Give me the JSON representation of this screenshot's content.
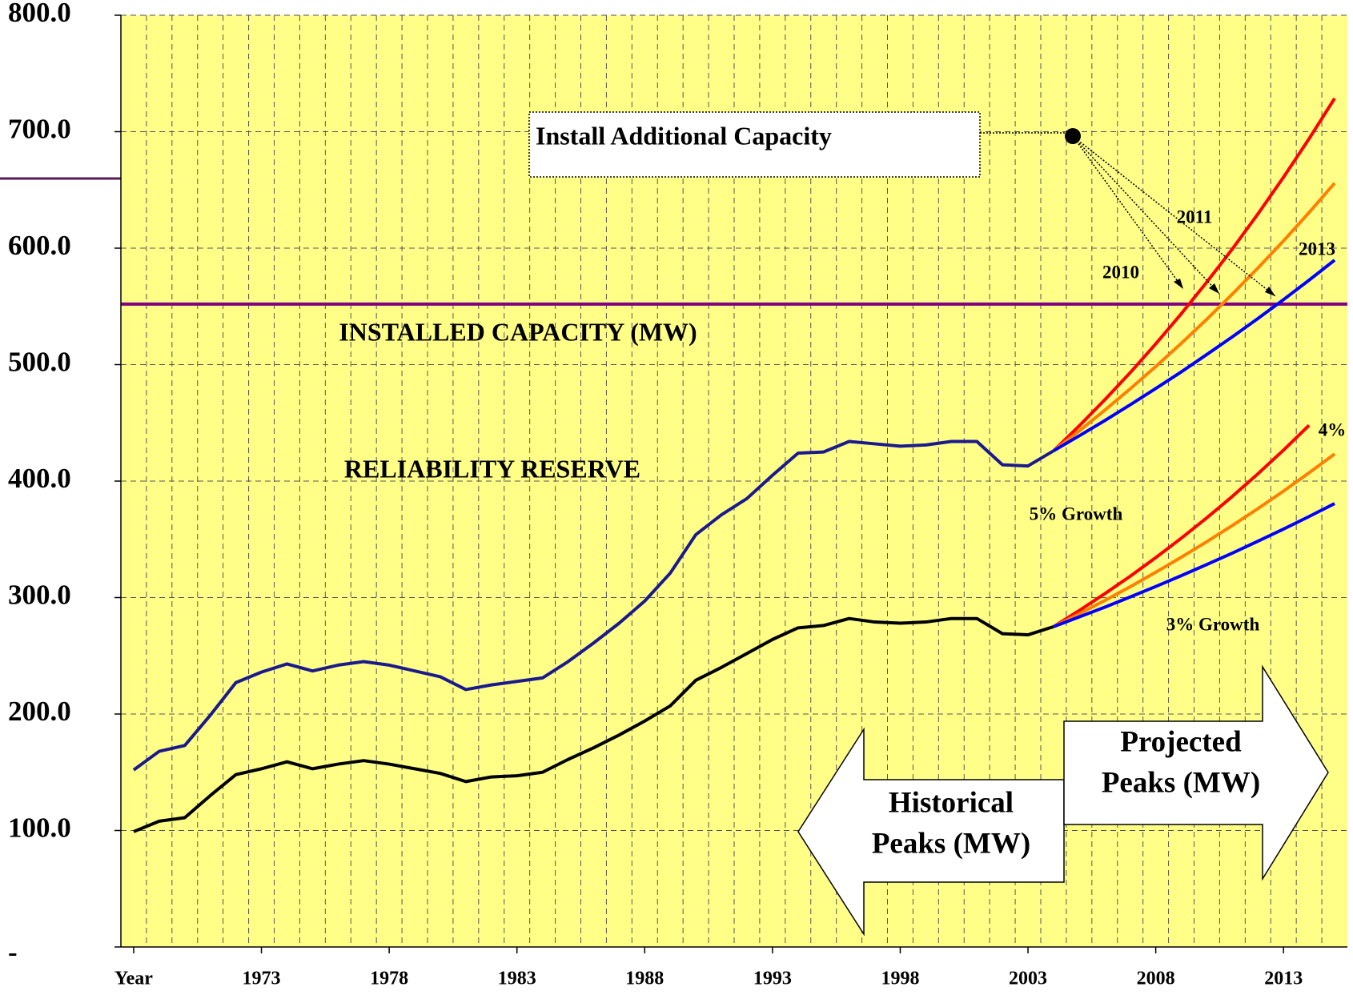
{
  "chart_data": {
    "type": "line",
    "x": [
      1968,
      1969,
      1970,
      1971,
      1972,
      1973,
      1974,
      1975,
      1976,
      1977,
      1978,
      1979,
      1980,
      1981,
      1982,
      1983,
      1984,
      1985,
      1986,
      1987,
      1988,
      1989,
      1990,
      1991,
      1992,
      1993,
      1994,
      1995,
      1996,
      1997,
      1998,
      1999,
      2000,
      2001,
      2002,
      2003,
      2004,
      2005,
      2006,
      2007,
      2008,
      2009,
      2010,
      2011,
      2012,
      2013,
      2014,
      2015
    ],
    "xlim": [
      1967.5,
      2015.5
    ],
    "xticks": [
      {
        "value": 1968,
        "label": "Year"
      },
      1973,
      1978,
      1983,
      1988,
      1993,
      1998,
      2003,
      2008,
      2013
    ],
    "ylim": [
      0,
      800
    ],
    "yticks": [
      {
        "value": 0,
        "label": "-"
      },
      {
        "value": 100,
        "label": "100.0"
      },
      {
        "value": 200,
        "label": "200.0"
      },
      {
        "value": 300,
        "label": "300.0"
      },
      {
        "value": 400,
        "label": "400.0"
      },
      {
        "value": 500,
        "label": "500.0"
      },
      {
        "value": 600,
        "label": "600.0"
      },
      {
        "value": 700,
        "label": "700.0"
      },
      {
        "value": 800,
        "label": "800.0"
      }
    ],
    "grid": true,
    "capacity": {
      "label": "INSTALLED CAPACITY (MW)",
      "value": 552,
      "color": "#800080"
    },
    "series": [
      {
        "name": "RELIABILITY RESERVE",
        "color": "#1a1a8c",
        "values": [
          152,
          168,
          173,
          199,
          227,
          236,
          243,
          237,
          242,
          245,
          242,
          237,
          232,
          221,
          225,
          228,
          231,
          245,
          261,
          278,
          297,
          321,
          354,
          371,
          385,
          405,
          424,
          425,
          434,
          432,
          430,
          431,
          434,
          434,
          414,
          413,
          426,
          null,
          null,
          null,
          null,
          null,
          null,
          null,
          null,
          null,
          null,
          null
        ]
      },
      {
        "color": "#000000",
        "values": [
          99,
          108,
          111,
          130,
          148,
          153,
          159,
          153,
          157,
          160,
          157,
          153,
          149,
          142,
          146,
          147,
          150,
          161,
          171,
          182,
          194,
          207,
          229,
          240,
          252,
          264,
          274,
          276,
          282,
          279,
          278,
          279,
          282,
          282,
          269,
          268,
          275,
          null,
          null,
          null,
          null,
          null,
          null,
          null,
          null,
          null,
          null,
          null
        ]
      },
      {
        "color": "#ff0000",
        "values": [
          null,
          null,
          null,
          null,
          null,
          null,
          null,
          null,
          null,
          null,
          null,
          null,
          null,
          null,
          null,
          null,
          null,
          null,
          null,
          null,
          null,
          null,
          null,
          null,
          null,
          null,
          null,
          null,
          null,
          null,
          null,
          null,
          null,
          null,
          null,
          null,
          426,
          447.3,
          469.7,
          493.1,
          517.8,
          543.7,
          570.9,
          599.4,
          629.4,
          660.9,
          693.9,
          728.6
        ]
      },
      {
        "color": "#ff7f00",
        "values": [
          null,
          null,
          null,
          null,
          null,
          null,
          null,
          null,
          null,
          null,
          null,
          null,
          null,
          null,
          null,
          null,
          null,
          null,
          null,
          null,
          null,
          null,
          null,
          null,
          null,
          null,
          null,
          null,
          null,
          null,
          null,
          null,
          null,
          null,
          null,
          null,
          426,
          443.0,
          460.8,
          479.2,
          498.4,
          518.3,
          539.0,
          560.6,
          583.0,
          606.3,
          630.6,
          655.8
        ]
      },
      {
        "color": "#0000ff",
        "values": [
          null,
          null,
          null,
          null,
          null,
          null,
          null,
          null,
          null,
          null,
          null,
          null,
          null,
          null,
          null,
          null,
          null,
          null,
          null,
          null,
          null,
          null,
          null,
          null,
          null,
          null,
          null,
          null,
          null,
          null,
          null,
          null,
          null,
          null,
          null,
          null,
          426,
          438.8,
          451.9,
          465.5,
          479.5,
          493.8,
          508.7,
          523.9,
          539.6,
          555.8,
          572.5,
          589.7
        ]
      },
      {
        "color": "#ff0000",
        "values": [
          null,
          null,
          null,
          null,
          null,
          null,
          null,
          null,
          null,
          null,
          null,
          null,
          null,
          null,
          null,
          null,
          null,
          null,
          null,
          null,
          null,
          null,
          null,
          null,
          null,
          null,
          null,
          null,
          null,
          null,
          null,
          null,
          null,
          null,
          null,
          null,
          275,
          288.8,
          303.2,
          318.3,
          334.3,
          351.0,
          368.5,
          386.9,
          406.3,
          426.6,
          447.9,
          null
        ]
      },
      {
        "color": "#ff7f00",
        "values": [
          null,
          null,
          null,
          null,
          null,
          null,
          null,
          null,
          null,
          null,
          null,
          null,
          null,
          null,
          null,
          null,
          null,
          null,
          null,
          null,
          null,
          null,
          null,
          null,
          null,
          null,
          null,
          null,
          null,
          null,
          null,
          null,
          null,
          null,
          null,
          null,
          275,
          286.0,
          297.4,
          309.3,
          321.7,
          334.6,
          348.0,
          361.9,
          376.4,
          391.4,
          407.1,
          423.3
        ]
      },
      {
        "color": "#0000ff",
        "values": [
          null,
          null,
          null,
          null,
          null,
          null,
          null,
          null,
          null,
          null,
          null,
          null,
          null,
          null,
          null,
          null,
          null,
          null,
          null,
          null,
          null,
          null,
          null,
          null,
          null,
          null,
          null,
          null,
          null,
          null,
          null,
          null,
          null,
          null,
          null,
          null,
          275,
          283.3,
          291.7,
          300.5,
          309.5,
          318.8,
          328.4,
          338.2,
          348.4,
          358.8,
          369.6,
          380.7
        ]
      }
    ],
    "annotations": {
      "install": "Install Additional Capacity",
      "y2010": "2010",
      "y2011": "2011",
      "y2013": "2013",
      "growth5": "5% Growth",
      "growth4": "4%",
      "growth3": "3% Growth",
      "historical": [
        "Historical",
        "Peaks (MW)"
      ],
      "projected": [
        "Projected",
        "Peaks (MW)"
      ]
    },
    "background": "#ffff88"
  }
}
